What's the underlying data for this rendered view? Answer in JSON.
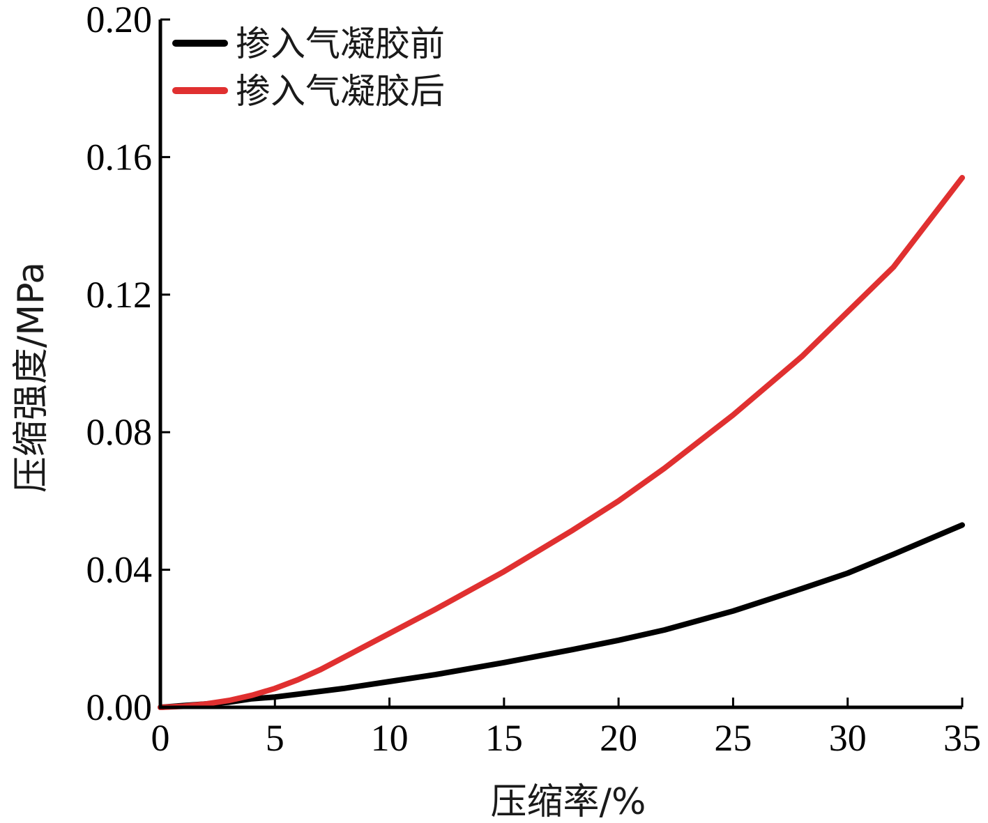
{
  "chart_data": {
    "type": "line",
    "title": "",
    "xlabel": "压缩率/%",
    "ylabel": "压缩强度/MPa",
    "xlim": [
      0,
      35
    ],
    "ylim": [
      0,
      0.2
    ],
    "x_ticks": [
      "0",
      "5",
      "10",
      "15",
      "20",
      "25",
      "30",
      "35"
    ],
    "y_ticks": [
      "0.00",
      "0.04",
      "0.08",
      "0.12",
      "0.16",
      "0.20"
    ],
    "grid": false,
    "legend_position": "top-left",
    "series": [
      {
        "name": "掺入气凝胶前",
        "color": "#000000",
        "x": [
          0,
          1,
          2,
          3,
          4,
          5,
          6,
          8,
          10,
          12,
          15,
          18,
          20,
          22,
          25,
          28,
          30,
          32,
          35
        ],
        "y": [
          0.0,
          0.0005,
          0.001,
          0.0015,
          0.0025,
          0.003,
          0.0038,
          0.0055,
          0.0075,
          0.0095,
          0.013,
          0.0168,
          0.0195,
          0.0225,
          0.028,
          0.0345,
          0.039,
          0.0445,
          0.053
        ]
      },
      {
        "name": "掺入气凝胶后",
        "color": "#e03030",
        "x": [
          0,
          1,
          2,
          3,
          4,
          5,
          6,
          7,
          8,
          9,
          10,
          12,
          15,
          18,
          20,
          22,
          25,
          28,
          30,
          32,
          35
        ],
        "y": [
          0.0,
          0.0003,
          0.001,
          0.002,
          0.0035,
          0.0055,
          0.008,
          0.011,
          0.0145,
          0.018,
          0.0215,
          0.0285,
          0.0395,
          0.0515,
          0.06,
          0.0695,
          0.085,
          0.102,
          0.115,
          0.128,
          0.154
        ]
      }
    ]
  }
}
